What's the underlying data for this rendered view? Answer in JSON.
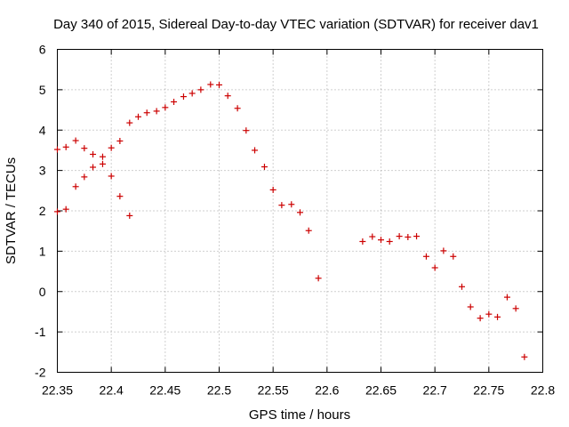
{
  "chart_data": {
    "type": "scatter",
    "title": "Day 340 of 2015, Sidereal Day-to-day VTEC variation (SDTVAR) for receiver dav1",
    "xlabel": "GPS time / hours",
    "ylabel": "SDTVAR / TECUs",
    "xlim": [
      22.35,
      22.8
    ],
    "ylim": [
      -2,
      6
    ],
    "xticks": [
      22.35,
      22.4,
      22.45,
      22.5,
      22.55,
      22.6,
      22.65,
      22.7,
      22.75,
      22.8
    ],
    "xtick_labels": [
      "22.35",
      "22.4",
      "22.45",
      "22.5",
      "22.55",
      "22.6",
      "22.65",
      "22.7",
      "22.75",
      "22.8"
    ],
    "yticks": [
      -2,
      -1,
      0,
      1,
      2,
      3,
      4,
      5,
      6
    ],
    "ytick_labels": [
      "-2",
      "-1",
      "0",
      "1",
      "2",
      "3",
      "4",
      "5",
      "6"
    ],
    "grid": true,
    "marker": "+",
    "color": "#cc0000",
    "series": [
      {
        "name": "SDTVAR",
        "points": [
          [
            22.35,
            3.52
          ],
          [
            22.35,
            1.98
          ],
          [
            22.358,
            3.58
          ],
          [
            22.358,
            2.04
          ],
          [
            22.367,
            3.74
          ],
          [
            22.367,
            2.6
          ],
          [
            22.375,
            3.55
          ],
          [
            22.375,
            2.84
          ],
          [
            22.383,
            3.4
          ],
          [
            22.383,
            3.08
          ],
          [
            22.392,
            3.34
          ],
          [
            22.392,
            3.16
          ],
          [
            22.4,
            3.56
          ],
          [
            22.4,
            2.86
          ],
          [
            22.408,
            3.73
          ],
          [
            22.408,
            2.36
          ],
          [
            22.417,
            4.18
          ],
          [
            22.417,
            1.88
          ],
          [
            22.425,
            4.33
          ],
          [
            22.433,
            4.43
          ],
          [
            22.442,
            4.47
          ],
          [
            22.45,
            4.56
          ],
          [
            22.458,
            4.7
          ],
          [
            22.467,
            4.83
          ],
          [
            22.475,
            4.91
          ],
          [
            22.483,
            5.0
          ],
          [
            22.492,
            5.13
          ],
          [
            22.5,
            5.12
          ],
          [
            22.508,
            4.85
          ],
          [
            22.517,
            4.54
          ],
          [
            22.525,
            3.99
          ],
          [
            22.533,
            3.5
          ],
          [
            22.542,
            3.09
          ],
          [
            22.55,
            2.52
          ],
          [
            22.558,
            2.14
          ],
          [
            22.567,
            2.16
          ],
          [
            22.575,
            1.96
          ],
          [
            22.583,
            1.51
          ],
          [
            22.592,
            0.33
          ],
          [
            22.633,
            1.24
          ],
          [
            22.642,
            1.36
          ],
          [
            22.65,
            1.28
          ],
          [
            22.658,
            1.24
          ],
          [
            22.667,
            1.37
          ],
          [
            22.675,
            1.35
          ],
          [
            22.683,
            1.37
          ],
          [
            22.692,
            0.87
          ],
          [
            22.7,
            0.59
          ],
          [
            22.708,
            1.01
          ],
          [
            22.717,
            0.87
          ],
          [
            22.725,
            0.12
          ],
          [
            22.733,
            -0.38
          ],
          [
            22.742,
            -0.66
          ],
          [
            22.75,
            -0.56
          ],
          [
            22.758,
            -0.63
          ],
          [
            22.767,
            -0.14
          ],
          [
            22.775,
            -0.42
          ],
          [
            22.783,
            -1.62
          ]
        ]
      }
    ]
  }
}
